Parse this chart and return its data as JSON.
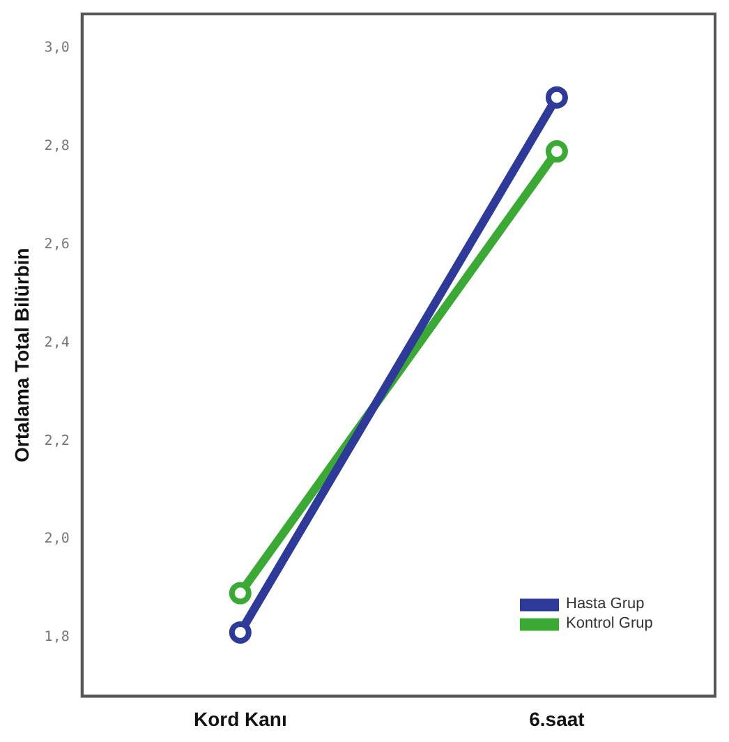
{
  "chart_data": {
    "type": "line",
    "ylabel": "Ortalama Total Bilürbin",
    "categories": [
      "Kord Kanı",
      "6.saat"
    ],
    "series": [
      {
        "name": "Hasta Grup",
        "color": "#2e3a9a",
        "values": [
          1.81,
          2.9
        ]
      },
      {
        "name": "Kontrol Grup",
        "color": "#3aaa35",
        "values": [
          1.89,
          2.79
        ]
      }
    ],
    "ylim": [
      1.68,
      3.07
    ],
    "yticks": [
      {
        "value": 1.8,
        "label": "1,8"
      },
      {
        "value": 2.0,
        "label": "2,0"
      },
      {
        "value": 2.2,
        "label": "2,2"
      },
      {
        "value": 2.4,
        "label": "2,4"
      },
      {
        "value": 2.6,
        "label": "2,6"
      },
      {
        "value": 2.8,
        "label": "2,8"
      },
      {
        "value": 3.0,
        "label": "3,0"
      }
    ],
    "grid": false,
    "legend": "bottom right",
    "marker": "circle",
    "line_style": "solid"
  }
}
